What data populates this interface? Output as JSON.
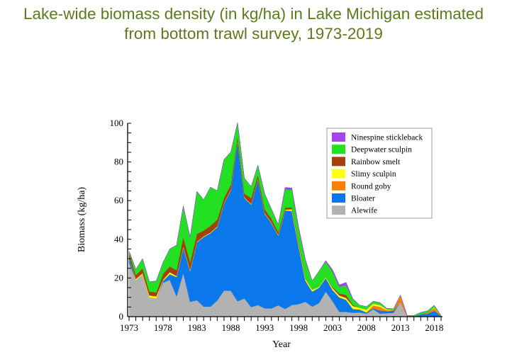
{
  "title_lines": [
    "Lake-wide biomass density (in kg/ha) in Lake Michigan estimated",
    "from bottom trawl survey, 1973-2019"
  ],
  "chart_data": {
    "type": "area",
    "stacked": true,
    "title": "Lake-wide biomass density (in kg/ha) in Lake Michigan estimated from bottom trawl survey, 1973-2019",
    "xlabel": "Year",
    "ylabel": "Biomass (kg/ha)",
    "xlim": [
      1973,
      2019
    ],
    "ylim": [
      0,
      100
    ],
    "yticks": [
      0,
      20,
      40,
      60,
      80,
      100
    ],
    "xticks": [
      1973,
      1978,
      1983,
      1988,
      1993,
      1998,
      2003,
      2008,
      2013,
      2018
    ],
    "legend_position": "top-right",
    "x": [
      1973,
      1974,
      1975,
      1976,
      1977,
      1978,
      1979,
      1980,
      1981,
      1982,
      1983,
      1984,
      1985,
      1986,
      1987,
      1988,
      1989,
      1990,
      1991,
      1992,
      1993,
      1994,
      1995,
      1996,
      1997,
      1998,
      1999,
      2000,
      2001,
      2002,
      2003,
      2004,
      2005,
      2006,
      2007,
      2008,
      2009,
      2010,
      2011,
      2012,
      2013,
      2014,
      2015,
      2016,
      2017,
      2018,
      2019
    ],
    "series": [
      {
        "name": "Alewife",
        "color": "#b2b2b2",
        "values": [
          28,
          19,
          22,
          10,
          9.5,
          17.5,
          19,
          10.5,
          22.7,
          7.7,
          8.5,
          5.2,
          5.2,
          8.3,
          13.5,
          13.4,
          8,
          9.4,
          5,
          6,
          4.3,
          4.3,
          5.9,
          4,
          6,
          6.5,
          7.7,
          5.2,
          7,
          13,
          8,
          2.5,
          2.5,
          2,
          2.2,
          1.6,
          3.8,
          1.6,
          1.8,
          2,
          7.7,
          0.3,
          0,
          0,
          0,
          0,
          0
        ]
      },
      {
        "name": "Bloater",
        "color": "#0a78ea",
        "values": [
          3,
          0,
          0,
          0,
          0,
          1,
          3,
          10,
          13,
          16,
          30,
          36,
          38,
          38,
          45,
          52,
          83,
          52,
          53,
          65,
          49,
          44,
          36,
          51,
          48.6,
          30,
          11,
          7.8,
          8,
          7,
          5.8,
          7.5,
          6.2,
          2,
          1.5,
          0.6,
          0.5,
          1.5,
          1,
          1,
          0,
          0,
          0.3,
          1.2,
          1.5,
          3,
          0.3
        ]
      },
      {
        "name": "Round goby",
        "color": "#f77f0c",
        "values": [
          0,
          0,
          0,
          0,
          0,
          0,
          0,
          0,
          0,
          0,
          0,
          0,
          0,
          0,
          0,
          0,
          0,
          0,
          0,
          0,
          0,
          0,
          0,
          0,
          0,
          0,
          0,
          0,
          0,
          0,
          0,
          0,
          0,
          0,
          0,
          0,
          1.5,
          2,
          0.5,
          0.8,
          3.4,
          0.3,
          0,
          0,
          0.5,
          1.5,
          0
        ]
      },
      {
        "name": "Slimy sculpin",
        "color": "#ffff10",
        "values": [
          0,
          0.5,
          0.5,
          1,
          1,
          0.5,
          1,
          0.5,
          0.5,
          0.5,
          0.3,
          0.3,
          0.3,
          0.3,
          0.3,
          0.3,
          0.3,
          0.3,
          0.3,
          0.3,
          0.3,
          0.3,
          0.3,
          0.3,
          1,
          1,
          1,
          1,
          0.5,
          0.5,
          1,
          1,
          1,
          1.5,
          1,
          1.5,
          1,
          1,
          0.5,
          0,
          0,
          0,
          0,
          0,
          0,
          0.4,
          0
        ]
      },
      {
        "name": "Rainbow smelt",
        "color": "#a3420c",
        "values": [
          2,
          2,
          2.5,
          2,
          2,
          3,
          3,
          3,
          5,
          4,
          4,
          3,
          3.5,
          3.5,
          2.5,
          2.5,
          2,
          2,
          3,
          2,
          2,
          2,
          1.5,
          1,
          1,
          1,
          0.5,
          0,
          0,
          0,
          0.5,
          1,
          1.5,
          0.5,
          0,
          0,
          0,
          0,
          0,
          0,
          0,
          0,
          0,
          0,
          0,
          0,
          0
        ]
      },
      {
        "name": "Deepwater sculpin",
        "color": "#22e022",
        "values": [
          1,
          3,
          5,
          5,
          6,
          6,
          9,
          13,
          16,
          13,
          22,
          16,
          20,
          15,
          20,
          17,
          7,
          8,
          6,
          5,
          8,
          5,
          4,
          9.5,
          9,
          7,
          9,
          4.5,
          8,
          8,
          8,
          3.5,
          5,
          3,
          1.3,
          1.5,
          1.2,
          1.2,
          0.5,
          0.3,
          0,
          0,
          0.3,
          1,
          1,
          1,
          0.3
        ]
      },
      {
        "name": "Ninespine stickleback",
        "color": "#a642f0",
        "values": [
          0,
          0,
          0,
          0,
          0,
          0,
          0,
          0,
          0,
          0,
          0,
          0,
          0,
          0,
          0,
          0,
          0,
          0,
          0,
          0,
          0,
          0,
          0,
          1,
          1,
          1,
          0.5,
          0,
          0,
          0.5,
          1,
          1,
          1.5,
          0.3,
          0,
          0,
          0,
          0,
          0,
          0,
          0,
          0,
          0,
          0,
          0,
          0,
          0
        ]
      }
    ]
  }
}
